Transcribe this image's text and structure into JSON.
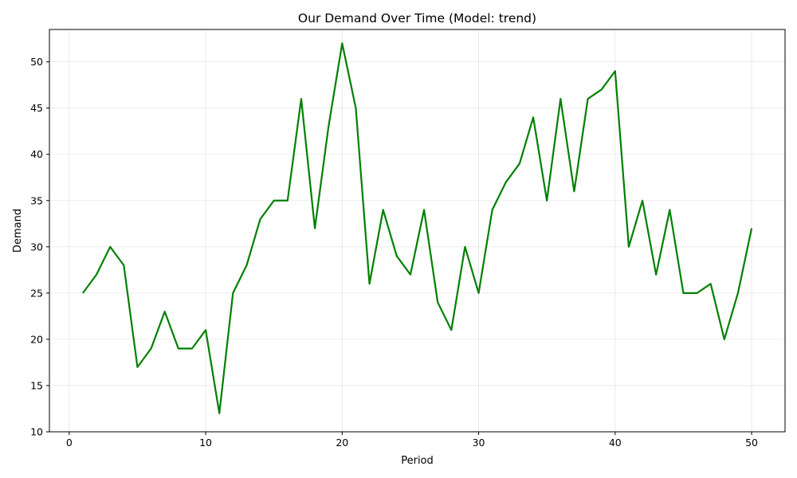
{
  "chart_data": {
    "type": "line",
    "title": "Our Demand Over Time (Model: trend)",
    "xlabel": "Period",
    "ylabel": "Demand",
    "xlim": [
      -1.45,
      52.45
    ],
    "ylim": [
      10,
      53.5
    ],
    "xticks": [
      0,
      10,
      20,
      30,
      40,
      50
    ],
    "yticks": [
      10,
      15,
      20,
      25,
      30,
      35,
      40,
      45,
      50
    ],
    "grid": true,
    "line_color": "#008000",
    "series": [
      {
        "x": [
          1,
          2,
          3,
          4,
          5,
          6,
          7,
          8,
          9,
          10,
          11,
          12,
          13,
          14,
          15,
          16,
          17,
          18,
          19,
          20,
          21,
          22,
          23,
          24,
          25,
          26,
          27,
          28,
          29,
          30,
          31,
          32,
          33,
          34,
          35,
          36,
          37,
          38,
          39,
          40,
          41,
          42,
          43,
          44,
          45,
          46,
          47,
          48,
          49,
          50
        ],
        "values": [
          25,
          27,
          30,
          28,
          17,
          19,
          23,
          19,
          19,
          21,
          12,
          25,
          28,
          33,
          35,
          35,
          46,
          32,
          43,
          52,
          45,
          26,
          34,
          29,
          27,
          34,
          24,
          21,
          30,
          25,
          34,
          37,
          39,
          44,
          35,
          46,
          36,
          46,
          47,
          49,
          30,
          35,
          27,
          34,
          25,
          25,
          26,
          20,
          25,
          32
        ]
      }
    ]
  }
}
